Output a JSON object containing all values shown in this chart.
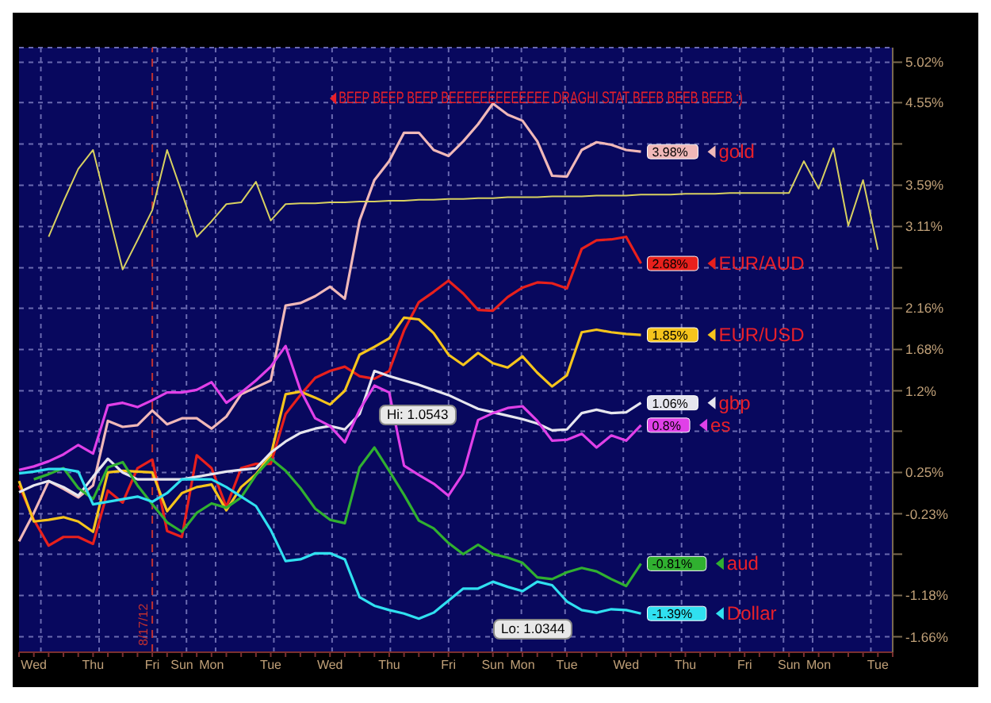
{
  "chart_data": {
    "type": "line",
    "title": "BEEP BEEP BEEP BEEEEEEEEEEEEE DRAGHI STAT BEEB BEEB BEEB :)",
    "grid": true,
    "categories": [
      null,
      "Wed",
      null,
      null,
      null,
      "Thu",
      null,
      null,
      null,
      "Fri",
      null,
      "Sun",
      null,
      "Mon",
      null,
      null,
      null,
      "Tue",
      null,
      null,
      null,
      "Wed",
      null,
      null,
      null,
      "Thu",
      null,
      null,
      null,
      "Fri",
      null,
      null,
      "Sun",
      null,
      "Mon",
      null,
      null,
      "Tue",
      null,
      null,
      null,
      "Wed",
      null,
      null,
      null,
      "Thu",
      null,
      null,
      null,
      "Fri",
      null,
      null,
      "Sun",
      null,
      "Mon",
      null,
      null,
      null,
      "Tue",
      null
    ],
    "ylim": [
      -1.84,
      5.19
    ],
    "yticks": [
      {
        "value": 5.02,
        "label": "5.02%"
      },
      {
        "value": 4.55,
        "label": "4.55%"
      },
      {
        "value": 4.07,
        "label": null
      },
      {
        "value": 3.59,
        "label": "3.59%"
      },
      {
        "value": 3.11,
        "label": "3.11%"
      },
      {
        "value": 2.63,
        "label": null
      },
      {
        "value": 2.16,
        "label": "2.16%"
      },
      {
        "value": 1.68,
        "label": "1.68%"
      },
      {
        "value": 1.2,
        "label": "1.2%"
      },
      {
        "value": 0.73,
        "label": null
      },
      {
        "value": 0.25,
        "label": "0.25%"
      },
      {
        "value": -0.23,
        "label": "-0.23%"
      },
      {
        "value": -0.7,
        "label": null
      },
      {
        "value": -1.18,
        "label": "-1.18%"
      },
      {
        "value": -1.66,
        "label": "-1.66%"
      }
    ],
    "ref_lines": [
      {
        "axis": "x",
        "value": "Fri",
        "label": "8/17/12",
        "color": "#c03030",
        "line_style": "dashed"
      }
    ],
    "annotations": [
      "Hi: 1.0543",
      "Lo: 1.0344"
    ],
    "legend": "right",
    "series": [
      {
        "name": "gold",
        "color": "#f0b8b8",
        "values": [
          -0.55,
          -0.22,
          0.15,
          0.06,
          -0.04,
          0.1,
          0.85,
          0.78,
          0.8,
          0.97,
          0.81,
          0.88,
          0.88,
          0.76,
          0.9,
          1.16,
          1.24,
          1.32,
          2.19,
          2.22,
          2.3,
          2.41,
          2.27,
          3.18,
          3.65,
          3.87,
          4.2,
          4.2,
          4.0,
          3.93,
          4.1,
          4.3,
          4.54,
          4.41,
          4.34,
          4.1,
          3.7,
          3.69,
          4.0,
          4.09,
          4.06,
          4.0,
          3.98,
          null,
          null,
          null,
          null,
          null,
          null,
          null,
          null,
          null,
          null,
          null,
          null,
          null,
          null,
          null,
          null,
          null
        ],
        "value_labels": [
          null,
          null,
          null,
          null,
          null,
          null,
          null,
          null,
          null,
          null,
          null,
          null,
          null,
          null,
          null,
          null,
          null,
          null,
          null,
          null,
          null,
          null,
          null,
          null,
          null,
          null,
          null,
          null,
          null,
          null,
          null,
          null,
          null,
          null,
          null,
          null,
          null,
          null,
          null,
          null,
          null,
          null,
          "3.98%",
          null,
          null,
          null,
          null,
          null,
          null,
          null,
          null,
          null,
          null,
          null,
          null,
          null,
          null,
          null,
          null,
          null
        ]
      },
      {
        "name": "EUR/AUD",
        "color": "#e8201c",
        "values": [
          0.1,
          -0.3,
          -0.6,
          -0.5,
          -0.5,
          -0.58,
          0.04,
          -0.1,
          0.3,
          0.4,
          -0.43,
          -0.5,
          0.45,
          0.3,
          -0.15,
          0.3,
          0.35,
          0.35,
          0.93,
          1.15,
          1.35,
          1.43,
          1.48,
          1.37,
          1.34,
          1.43,
          1.9,
          2.23,
          2.35,
          2.48,
          2.33,
          2.14,
          2.13,
          2.29,
          2.4,
          2.46,
          2.45,
          2.39,
          2.85,
          2.95,
          2.96,
          2.99,
          2.68,
          null,
          null,
          null,
          null,
          null,
          null,
          null,
          null,
          null,
          null,
          null,
          null,
          null,
          null,
          null,
          null,
          null
        ],
        "value_labels": [
          null,
          null,
          null,
          null,
          null,
          null,
          null,
          null,
          null,
          null,
          null,
          null,
          null,
          null,
          null,
          null,
          null,
          null,
          null,
          null,
          null,
          null,
          null,
          null,
          null,
          null,
          null,
          null,
          null,
          null,
          null,
          null,
          null,
          null,
          null,
          null,
          null,
          null,
          null,
          null,
          null,
          null,
          "2.68%",
          null,
          null,
          null,
          null,
          null,
          null,
          null,
          null,
          null,
          null,
          null,
          null,
          null,
          null,
          null,
          null,
          null
        ]
      },
      {
        "name": "EUR/USD",
        "color": "#f5c41c",
        "values": [
          0.15,
          -0.32,
          -0.3,
          -0.27,
          -0.32,
          -0.44,
          0.25,
          0.27,
          0.26,
          0.25,
          -0.2,
          0.01,
          0.08,
          0.11,
          -0.19,
          0.08,
          0.23,
          0.45,
          1.16,
          1.19,
          1.12,
          1.04,
          1.2,
          1.62,
          1.71,
          1.81,
          2.05,
          2.03,
          1.87,
          1.62,
          1.5,
          1.64,
          1.52,
          1.47,
          1.6,
          1.41,
          1.25,
          1.38,
          1.88,
          1.91,
          1.88,
          1.86,
          1.85,
          null,
          null,
          null,
          null,
          null,
          null,
          null,
          null,
          null,
          null,
          null,
          null,
          null,
          null,
          null,
          null,
          null
        ],
        "value_labels": [
          null,
          null,
          null,
          null,
          null,
          null,
          null,
          null,
          null,
          null,
          null,
          null,
          null,
          null,
          null,
          null,
          null,
          null,
          null,
          null,
          null,
          null,
          null,
          null,
          null,
          null,
          null,
          null,
          null,
          null,
          null,
          null,
          null,
          null,
          null,
          null,
          null,
          null,
          null,
          null,
          null,
          null,
          "1.85%",
          null,
          null,
          null,
          null,
          null,
          null,
          null,
          null,
          null,
          null,
          null,
          null,
          null,
          null,
          null,
          null,
          null
        ]
      },
      {
        "name": "gbp",
        "color": "#e6e6ee",
        "values": [
          0.02,
          0.1,
          0.15,
          0.08,
          -0.02,
          0.2,
          0.41,
          0.25,
          0.17,
          0.17,
          0.17,
          0.17,
          0.2,
          0.23,
          0.26,
          0.28,
          0.3,
          0.48,
          0.61,
          0.71,
          0.76,
          0.79,
          0.75,
          0.93,
          1.43,
          1.37,
          1.32,
          1.27,
          1.21,
          1.15,
          1.07,
          0.99,
          0.95,
          0.91,
          0.87,
          0.82,
          0.74,
          0.75,
          0.94,
          0.98,
          0.94,
          0.95,
          1.06,
          null,
          null,
          null,
          null,
          null,
          null,
          null,
          null,
          null,
          null,
          null,
          null,
          null,
          null,
          null,
          null,
          null
        ],
        "value_labels": [
          null,
          null,
          null,
          null,
          null,
          null,
          null,
          null,
          null,
          null,
          null,
          null,
          null,
          null,
          null,
          null,
          null,
          null,
          null,
          null,
          null,
          null,
          null,
          null,
          null,
          null,
          null,
          null,
          null,
          null,
          null,
          null,
          null,
          null,
          null,
          null,
          null,
          null,
          null,
          null,
          null,
          null,
          "1.06%",
          null,
          null,
          null,
          null,
          null,
          null,
          null,
          null,
          null,
          null,
          null,
          null,
          null,
          null,
          null,
          null,
          null
        ]
      },
      {
        "name": "es",
        "color": "#e040e8",
        "values": [
          0.28,
          0.32,
          0.38,
          0.46,
          0.57,
          0.47,
          1.03,
          1.06,
          1.01,
          1.09,
          1.18,
          1.18,
          1.21,
          1.3,
          1.06,
          1.18,
          1.32,
          1.48,
          1.72,
          1.21,
          0.88,
          0.79,
          0.6,
          0.98,
          1.26,
          1.18,
          0.33,
          0.22,
          0.12,
          -0.02,
          0.24,
          0.86,
          0.94,
          1.0,
          1.02,
          0.85,
          0.62,
          0.63,
          0.7,
          0.54,
          0.68,
          0.62,
          0.8,
          null,
          null,
          null,
          null,
          null,
          null,
          null,
          null,
          null,
          null,
          null,
          null,
          null,
          null,
          null,
          null,
          null
        ],
        "value_labels": [
          null,
          null,
          null,
          null,
          null,
          null,
          null,
          null,
          null,
          null,
          null,
          null,
          null,
          null,
          null,
          null,
          null,
          null,
          null,
          null,
          null,
          null,
          null,
          null,
          null,
          null,
          null,
          null,
          null,
          null,
          null,
          null,
          null,
          null,
          null,
          null,
          null,
          null,
          null,
          null,
          null,
          null,
          "0.8%",
          null,
          null,
          null,
          null,
          null,
          null,
          null,
          null,
          null,
          null,
          null,
          null,
          null,
          null,
          null,
          null,
          null
        ]
      },
      {
        "name": "aud",
        "color": "#30b030",
        "values": [
          null,
          0.17,
          0.23,
          0.3,
          0.07,
          -0.06,
          0.31,
          0.37,
          0.1,
          -0.12,
          -0.33,
          -0.44,
          -0.22,
          -0.11,
          -0.16,
          -0.04,
          0.22,
          0.41,
          0.27,
          0.07,
          -0.17,
          -0.3,
          -0.34,
          0.31,
          0.54,
          0.27,
          -0.01,
          -0.31,
          -0.4,
          -0.57,
          -0.7,
          -0.59,
          -0.7,
          -0.74,
          -0.8,
          -0.97,
          -0.99,
          -0.91,
          -0.86,
          -0.9,
          -0.99,
          -1.07,
          -0.81,
          null,
          null,
          null,
          null,
          null,
          null,
          null,
          null,
          null,
          null,
          null,
          null,
          null,
          null,
          null,
          null,
          null
        ],
        "value_labels": [
          null,
          null,
          null,
          null,
          null,
          null,
          null,
          null,
          null,
          null,
          null,
          null,
          null,
          null,
          null,
          null,
          null,
          null,
          null,
          null,
          null,
          null,
          null,
          null,
          null,
          null,
          null,
          null,
          null,
          null,
          null,
          null,
          null,
          null,
          null,
          null,
          null,
          null,
          null,
          null,
          null,
          null,
          "-0.81%",
          null,
          null,
          null,
          null,
          null,
          null,
          null,
          null,
          null,
          null,
          null,
          null,
          null,
          null,
          null,
          null,
          null
        ]
      },
      {
        "name": "Dollar",
        "color": "#30e0f0",
        "values": [
          0.24,
          0.26,
          0.29,
          0.29,
          0.26,
          -0.12,
          -0.09,
          -0.06,
          -0.03,
          -0.09,
          0.01,
          0.17,
          0.17,
          0.17,
          0.08,
          -0.03,
          -0.14,
          -0.42,
          -0.78,
          -0.76,
          -0.69,
          -0.69,
          -0.76,
          -1.2,
          -1.3,
          -1.35,
          -1.39,
          -1.45,
          -1.38,
          -1.24,
          -1.1,
          -1.1,
          -1.02,
          -1.08,
          -1.13,
          -1.02,
          -1.06,
          -1.25,
          -1.35,
          -1.38,
          -1.34,
          -1.35,
          -1.39,
          null,
          null,
          null,
          null,
          null,
          null,
          null,
          null,
          null,
          null,
          null,
          null,
          null,
          null,
          null,
          null,
          null
        ],
        "value_labels": [
          null,
          null,
          null,
          null,
          null,
          null,
          null,
          null,
          null,
          null,
          null,
          null,
          null,
          null,
          null,
          null,
          null,
          null,
          null,
          null,
          null,
          null,
          null,
          null,
          null,
          null,
          null,
          null,
          null,
          null,
          null,
          null,
          null,
          null,
          null,
          null,
          null,
          null,
          null,
          null,
          null,
          null,
          "-1.39%",
          null,
          null,
          null,
          null,
          null,
          null,
          null,
          null,
          null,
          null,
          null,
          null,
          null,
          null,
          null,
          null,
          null
        ]
      },
      {
        "color": "#d8d060",
        "values": [
          null,
          null,
          2.99,
          3.4,
          3.78,
          4.0,
          3.3,
          2.61,
          2.95,
          3.3,
          4.0,
          3.5,
          2.99,
          3.17,
          3.37,
          3.39,
          3.63,
          3.18,
          3.37,
          3.38,
          3.38,
          3.39,
          3.39,
          3.4,
          3.4,
          3.41,
          3.41,
          3.42,
          3.42,
          3.43,
          3.43,
          3.44,
          3.44,
          3.45,
          3.45,
          3.45,
          3.46,
          3.46,
          3.46,
          3.47,
          3.47,
          3.47,
          3.48,
          3.48,
          3.48,
          3.49,
          3.49,
          3.49,
          3.5,
          3.5,
          3.5,
          3.5,
          3.5,
          3.87,
          3.55,
          4.02,
          3.12,
          3.65,
          2.84,
          null
        ]
      }
    ]
  }
}
